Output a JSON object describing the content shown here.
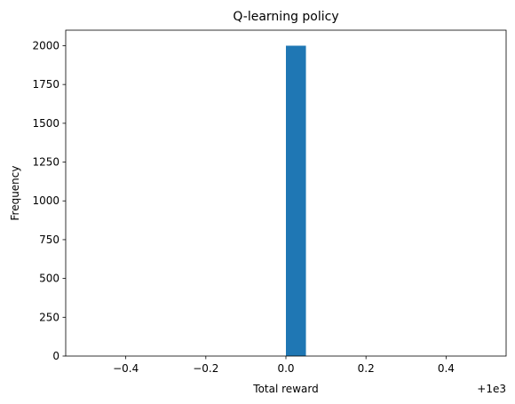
{
  "chart_data": {
    "type": "bar",
    "title": "Q-learning policy",
    "xlabel": "Total reward",
    "ylabel": "Frequency",
    "offset_label": "+1e3",
    "xlim": [
      -0.55,
      0.55
    ],
    "ylim": [
      0,
      2100
    ],
    "bar_color": "#1f77b4",
    "bars": [
      {
        "x0": 0.0,
        "x1": 0.05,
        "value": 2000
      }
    ],
    "xticks": [
      {
        "value": -0.4,
        "label": "−0.4"
      },
      {
        "value": -0.2,
        "label": "−0.2"
      },
      {
        "value": 0.0,
        "label": "0.0"
      },
      {
        "value": 0.2,
        "label": "0.2"
      },
      {
        "value": 0.4,
        "label": "0.4"
      }
    ],
    "yticks": [
      {
        "value": 0,
        "label": "0"
      },
      {
        "value": 250,
        "label": "250"
      },
      {
        "value": 500,
        "label": "500"
      },
      {
        "value": 750,
        "label": "750"
      },
      {
        "value": 1000,
        "label": "1000"
      },
      {
        "value": 1250,
        "label": "1250"
      },
      {
        "value": 1500,
        "label": "1500"
      },
      {
        "value": 1750,
        "label": "1750"
      },
      {
        "value": 2000,
        "label": "2000"
      }
    ],
    "grid": false,
    "legend": "none"
  }
}
